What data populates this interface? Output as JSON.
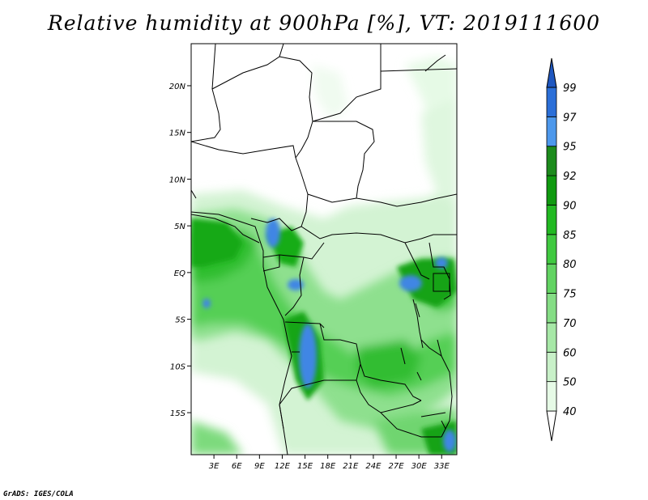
{
  "title": "Relative humidity at 900hPa [%], VT: 2019111600",
  "credit": "GrADS: IGES/COLA",
  "map": {
    "lat_labels": [
      "20N",
      "15N",
      "10N",
      "5N",
      "EQ",
      "5S",
      "10S",
      "15S"
    ],
    "lat_values": [
      20,
      15,
      10,
      5,
      0,
      -5,
      -10,
      -15
    ],
    "lon_labels": [
      "3E",
      "6E",
      "9E",
      "12E",
      "15E",
      "18E",
      "21E",
      "24E",
      "27E",
      "30E",
      "33E"
    ],
    "lon_values": [
      3,
      6,
      9,
      12,
      15,
      18,
      21,
      24,
      27,
      30,
      33
    ],
    "extent": {
      "lon_min": 0,
      "lon_max": 35,
      "lat_min": -19.5,
      "lat_max": 24.5
    }
  },
  "colorbar": {
    "labels": [
      "40",
      "50",
      "60",
      "70",
      "75",
      "80",
      "85",
      "90",
      "92",
      "95",
      "97",
      "99"
    ],
    "colors": [
      "#ffffff",
      "#e6fae6",
      "#c8f0c8",
      "#a7e8a7",
      "#85dd85",
      "#62d362",
      "#40c940",
      "#22b922",
      "#109a10",
      "#1c8b1c",
      "#4d98ec",
      "#2b6fd8",
      "#1f57c0"
    ]
  }
}
